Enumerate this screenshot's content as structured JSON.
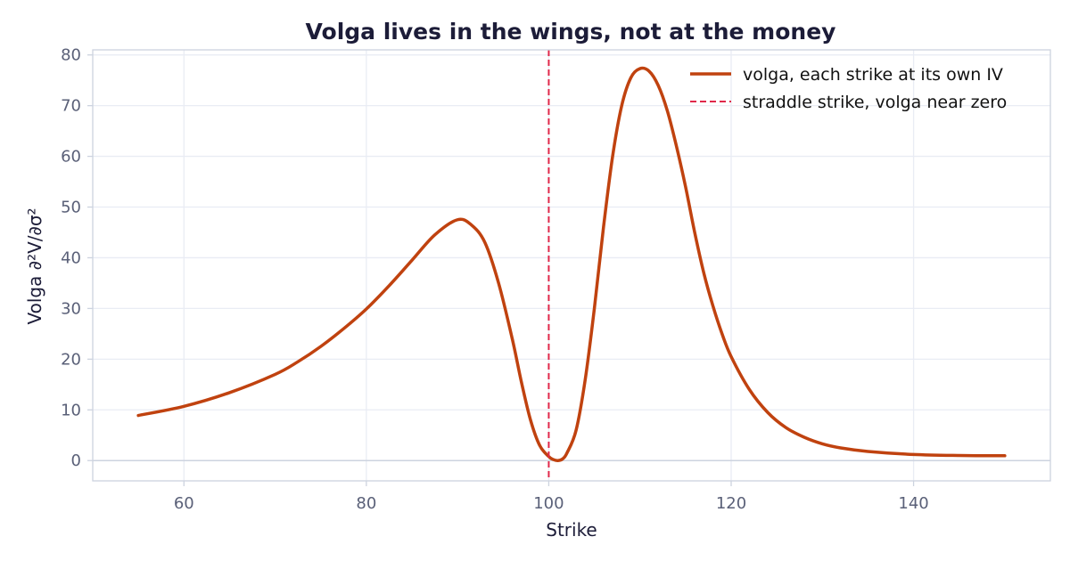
{
  "chart_data": {
    "type": "line",
    "title": "Volga lives in the wings, not at the money",
    "xlabel": "Strike",
    "ylabel": "Volga  ∂²V/∂σ²",
    "xlim": [
      50,
      155
    ],
    "ylim": [
      -4,
      81
    ],
    "xticks": [
      60,
      80,
      100,
      120,
      140
    ],
    "yticks": [
      0,
      10,
      20,
      30,
      40,
      50,
      60,
      70,
      80
    ],
    "grid": true,
    "legend_position": "top-right",
    "series": [
      {
        "name": "volga, each strike at its own IV",
        "style": "solid",
        "color": "#c0420f",
        "x": [
          55,
          60,
          65,
          70,
          72.5,
          75,
          77.5,
          80,
          82.5,
          85,
          87.5,
          90,
          91.5,
          93,
          94.5,
          96,
          97,
          98,
          99,
          100,
          100.5,
          101,
          101.5,
          102,
          103,
          104,
          105,
          106,
          107,
          108,
          109,
          110,
          111,
          112,
          113,
          114,
          115,
          116,
          117,
          118,
          119,
          120,
          122,
          124,
          126,
          128,
          130,
          132,
          135,
          140,
          145,
          150
        ],
        "y": [
          8.9,
          10.7,
          13.4,
          17.0,
          19.5,
          22.5,
          26.0,
          29.9,
          34.5,
          39.5,
          44.5,
          47.5,
          46.5,
          43.0,
          35.0,
          24.0,
          15.5,
          8.0,
          3.0,
          0.8,
          0.2,
          0.0,
          0.3,
          1.5,
          6.0,
          16.0,
          30.0,
          46.0,
          60.0,
          70.0,
          75.5,
          77.3,
          76.8,
          74.0,
          69.0,
          62.0,
          54.0,
          45.0,
          37.0,
          30.5,
          25.0,
          20.5,
          14.0,
          9.5,
          6.5,
          4.6,
          3.3,
          2.5,
          1.8,
          1.2,
          1.0,
          0.95
        ]
      },
      {
        "name": "straddle strike, volga near zero",
        "style": "dashed",
        "color": "#e0284a",
        "x_value": 100
      }
    ]
  }
}
